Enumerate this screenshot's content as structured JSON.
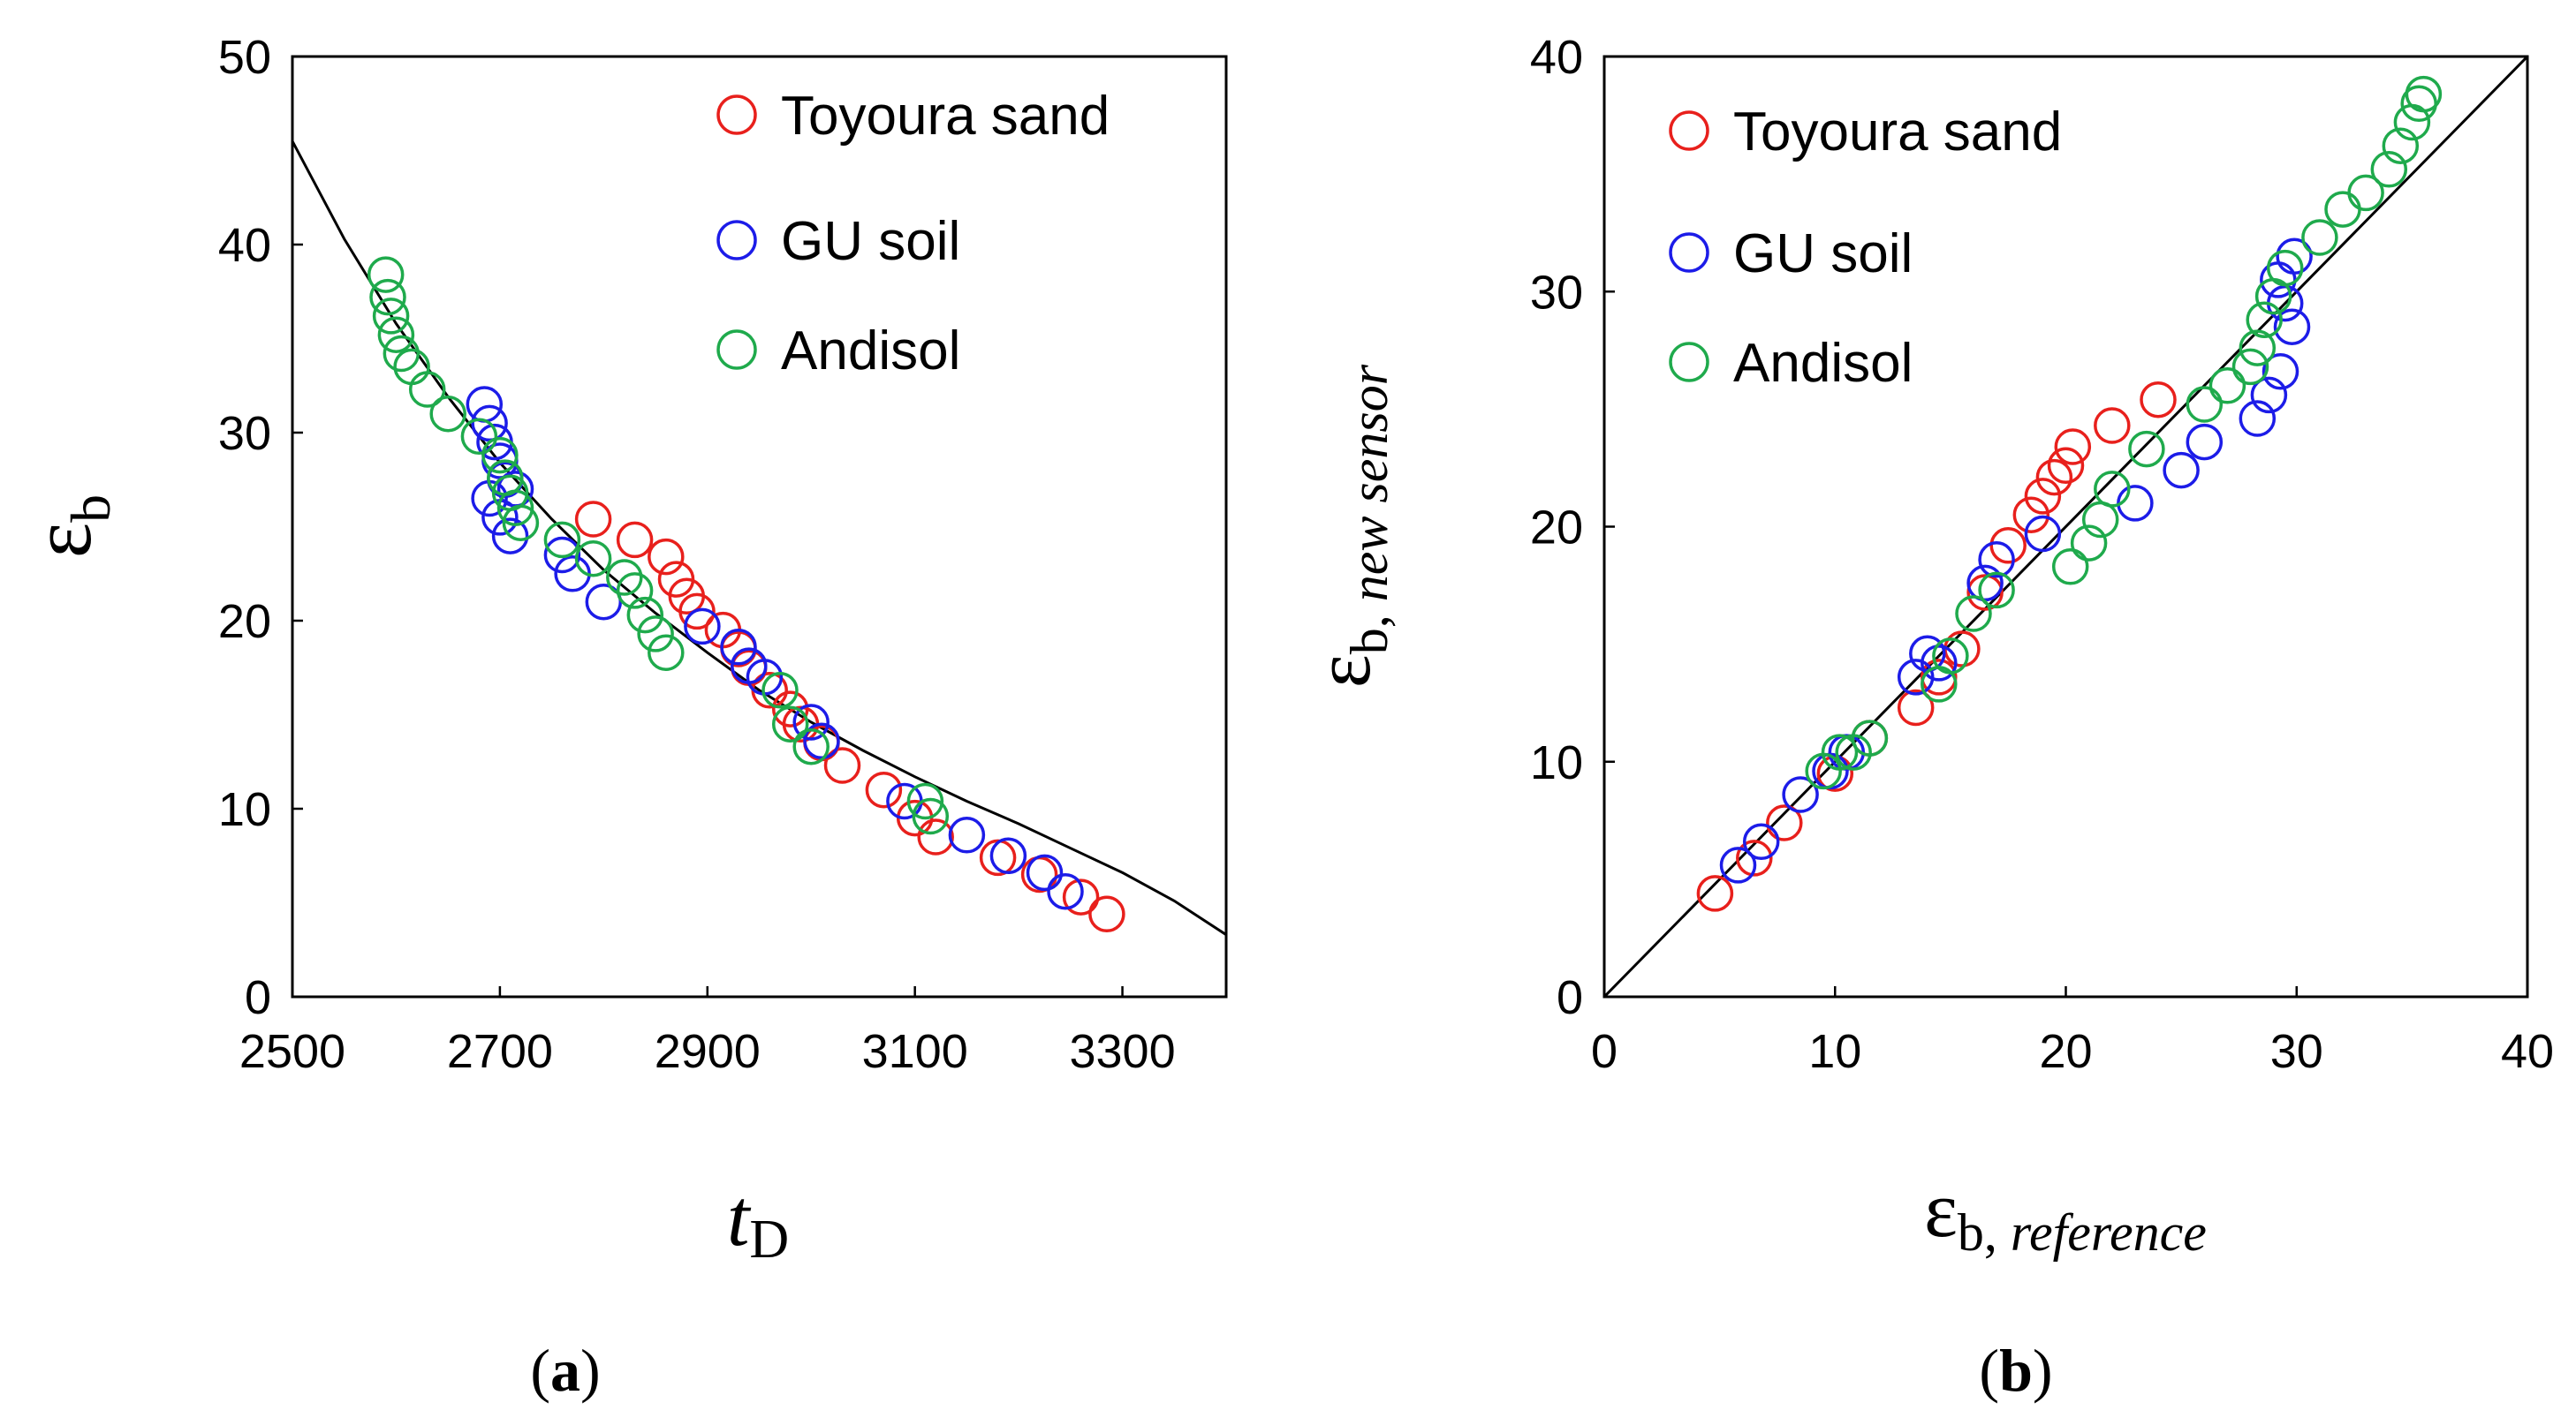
{
  "chart_data": [
    {
      "type": "scatter",
      "panel_label": "a",
      "xlabel": "t",
      "xlabel_sub": "D",
      "ylabel": "ε",
      "ylabel_sub": "b",
      "xlim": [
        2500,
        3400
      ],
      "ylim": [
        0,
        50
      ],
      "xticks": [
        "2500",
        "2700",
        "2900",
        "3100",
        "3300"
      ],
      "xtick_values": [
        2500,
        2700,
        2900,
        3100,
        3300
      ],
      "yticks": [
        "0",
        "10",
        "20",
        "30",
        "40",
        "50"
      ],
      "ytick_values": [
        0,
        10,
        20,
        30,
        40,
        50
      ],
      "legend_position": "top-right",
      "fit_curve": {
        "name": "fit",
        "color": "#000000",
        "x": [
          2500,
          2550,
          2600,
          2650,
          2700,
          2750,
          2800,
          2850,
          2900,
          2950,
          3000,
          3050,
          3100,
          3150,
          3200,
          3250,
          3300,
          3350,
          3400
        ],
        "y": [
          45.5,
          40.3,
          35.8,
          31.9,
          28.4,
          25.4,
          22.7,
          20.4,
          18.3,
          16.3,
          14.6,
          13.1,
          11.7,
          10.4,
          9.2,
          7.9,
          6.6,
          5.1,
          3.3
        ]
      },
      "series": [
        {
          "name": "Toyoura sand",
          "color": "#e8201c",
          "x": [
            2790,
            2830,
            2860,
            2870,
            2880,
            2890,
            2915,
            2930,
            2940,
            2960,
            2980,
            2990,
            3010,
            3030,
            3070,
            3100,
            3120,
            3180,
            3220,
            3260,
            3285
          ],
          "y": [
            25.4,
            24.3,
            23.4,
            22.2,
            21.3,
            20.5,
            19.5,
            18.5,
            17.5,
            16.3,
            15.3,
            14.5,
            13.5,
            12.3,
            11.0,
            9.5,
            8.5,
            7.4,
            6.5,
            5.3,
            4.4
          ]
        },
        {
          "name": "GU soil",
          "color": "#1c1ce8",
          "x": [
            2685,
            2690,
            2695,
            2700,
            2705,
            2690,
            2700,
            2710,
            2715,
            2760,
            2770,
            2800,
            2895,
            2930,
            2940,
            2955,
            3000,
            3010,
            3090,
            3150,
            3190,
            3225,
            3245
          ],
          "y": [
            31.5,
            30.5,
            29.5,
            28.5,
            27.5,
            26.5,
            25.5,
            24.5,
            27.0,
            23.5,
            22.5,
            21.0,
            19.7,
            18.6,
            17.6,
            17.0,
            14.6,
            13.6,
            10.4,
            8.6,
            7.5,
            6.6,
            5.6
          ]
        },
        {
          "name": "Andisol",
          "color": "#1faa4c",
          "x": [
            2590,
            2592,
            2595,
            2600,
            2605,
            2615,
            2630,
            2650,
            2680,
            2700,
            2705,
            2710,
            2715,
            2720,
            2760,
            2790,
            2820,
            2830,
            2840,
            2850,
            2860,
            2970,
            2980,
            3000,
            3110,
            3115
          ],
          "y": [
            38.4,
            37.2,
            36.2,
            35.2,
            34.2,
            33.5,
            32.3,
            31.0,
            29.8,
            28.8,
            27.6,
            26.8,
            26.0,
            25.2,
            24.3,
            23.3,
            22.3,
            21.6,
            20.3,
            19.3,
            18.3,
            16.3,
            14.5,
            13.3,
            10.4,
            9.6
          ]
        }
      ]
    },
    {
      "type": "scatter",
      "panel_label": "b",
      "xlabel": "ε",
      "xlabel_sub": "b, ",
      "xlabel_sub_italic": "reference",
      "ylabel": "ε",
      "ylabel_sub": "b, ",
      "ylabel_sub_italic": "new sensor",
      "xlim": [
        0,
        40
      ],
      "ylim": [
        0,
        40
      ],
      "xticks": [
        "0",
        "10",
        "20",
        "30",
        "40"
      ],
      "xtick_values": [
        0,
        10,
        20,
        30,
        40
      ],
      "yticks": [
        "0",
        "10",
        "20",
        "30",
        "40"
      ],
      "ytick_values": [
        0,
        10,
        20,
        30,
        40
      ],
      "legend_position": "top-left",
      "reference_line": {
        "name": "1:1 line",
        "color": "#000000",
        "x": [
          0,
          40
        ],
        "y": [
          0,
          40
        ]
      },
      "series": [
        {
          "name": "Toyoura sand",
          "color": "#e8201c",
          "x": [
            4.8,
            6.5,
            7.8,
            10.0,
            11.5,
            13.5,
            14.5,
            15.5,
            16.5,
            17.5,
            18.5,
            19.0,
            19.5,
            20.0,
            20.3,
            22.0,
            24.0
          ],
          "y": [
            4.4,
            5.9,
            7.4,
            9.5,
            11.0,
            12.3,
            13.6,
            14.8,
            17.2,
            19.2,
            20.5,
            21.3,
            22.1,
            22.6,
            23.4,
            24.3,
            25.4
          ]
        },
        {
          "name": "GU soil",
          "color": "#1c1ce8",
          "x": [
            5.8,
            6.8,
            8.5,
            9.8,
            10.5,
            13.5,
            14.0,
            14.5,
            16.5,
            17.0,
            19.0,
            23.0,
            25.0,
            26.0,
            28.3,
            28.8,
            29.3,
            29.8,
            29.5,
            29.2,
            29.9
          ],
          "y": [
            5.6,
            6.6,
            8.6,
            9.6,
            10.4,
            13.6,
            14.6,
            14.2,
            17.6,
            18.6,
            19.7,
            21.0,
            22.4,
            23.6,
            24.6,
            25.6,
            26.6,
            28.5,
            29.5,
            30.5,
            31.5
          ]
        },
        {
          "name": "Andisol",
          "color": "#1faa4c",
          "x": [
            9.5,
            10.2,
            10.8,
            11.5,
            14.5,
            15.0,
            16.0,
            17.0,
            20.2,
            21.0,
            21.5,
            22.0,
            23.5,
            26.0,
            27.0,
            28.0,
            28.3,
            28.6,
            29.0,
            29.5,
            31.0,
            32.0,
            33.0,
            34.0,
            34.5,
            35.0,
            35.3,
            35.5
          ],
          "y": [
            9.6,
            10.4,
            10.4,
            11.0,
            13.3,
            14.5,
            16.3,
            17.3,
            18.3,
            19.3,
            20.3,
            21.6,
            23.3,
            25.2,
            26.0,
            26.8,
            27.6,
            28.8,
            29.8,
            31.0,
            32.3,
            33.5,
            34.2,
            35.2,
            36.2,
            37.2,
            38.0,
            38.4
          ]
        }
      ]
    }
  ]
}
